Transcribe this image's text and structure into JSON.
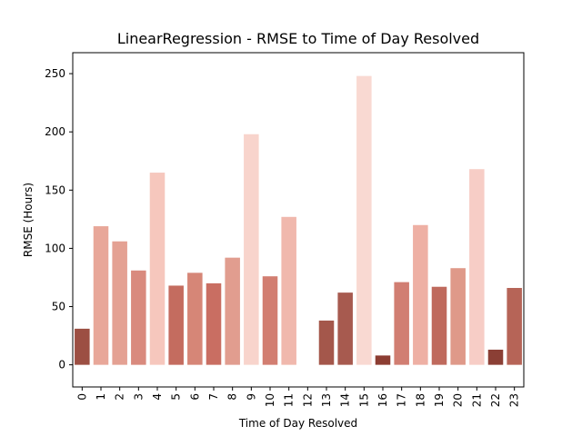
{
  "chart_data": {
    "type": "bar",
    "title": "LinearRegression - RMSE to Time of Day Resolved",
    "xlabel": "Time of Day Resolved",
    "ylabel": "RMSE (Hours)",
    "categories": [
      "0",
      "1",
      "2",
      "3",
      "4",
      "5",
      "6",
      "7",
      "8",
      "9",
      "10",
      "11",
      "12",
      "13",
      "14",
      "15",
      "16",
      "17",
      "18",
      "19",
      "20",
      "21",
      "22",
      "23"
    ],
    "values": [
      31,
      119,
      106,
      81,
      165,
      68,
      79,
      70,
      92,
      198,
      76,
      127,
      0,
      38,
      62,
      248,
      8,
      71,
      120,
      67,
      83,
      168,
      13,
      66
    ],
    "colors": [
      "#9c4f43",
      "#e8a799",
      "#e4a193",
      "#d98a7e",
      "#f6c7bd",
      "#c46c5f",
      "#d68677",
      "#c96e62",
      "#e19d8f",
      "#f8d4cc",
      "#d27e71",
      "#f0b8ad",
      "#ffffff",
      "#a4574b",
      "#a75a4f",
      "#f9d9d2",
      "#8c3d32",
      "#d17e72",
      "#eeb0a4",
      "#bf6a5d",
      "#df9989",
      "#f7cdc6",
      "#8b3f35",
      "#b66457"
    ],
    "yticks": [
      0,
      50,
      100,
      150,
      200,
      250
    ],
    "ylim": [
      -19,
      268
    ],
    "grid": false
  }
}
